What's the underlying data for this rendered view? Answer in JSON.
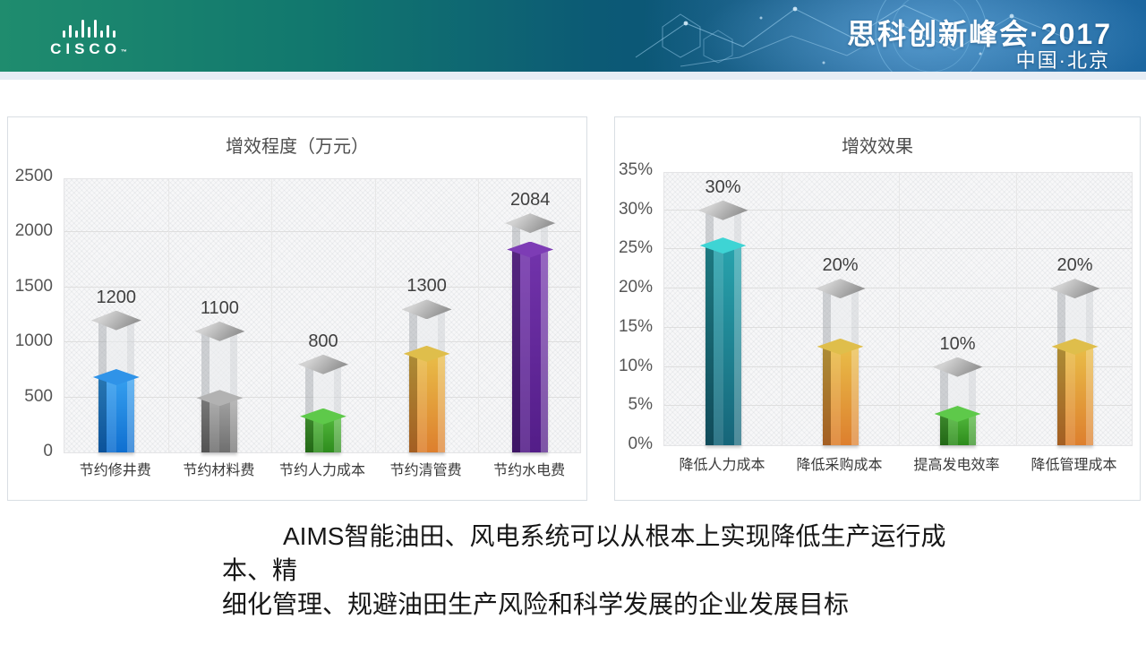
{
  "header": {
    "brand": "CISCO",
    "trademark": "™",
    "title": "思科创新峰会·2017",
    "subtitle": "中国·北京",
    "colors": {
      "gradient_teal": "#1f8c6e",
      "gradient_deep_blue": "#0b4a7c",
      "network_light_blue": "#8ecdf2"
    }
  },
  "chart_data": [
    {
      "type": "bar",
      "title": "增效程度（万元）",
      "categories": [
        "节约修井费",
        "节约材料费",
        "节约人力成本",
        "节约清管费",
        "节约水电费"
      ],
      "values": [
        1200,
        1100,
        800,
        1300,
        2084
      ],
      "data_labels": [
        "1200",
        "1100",
        "800",
        "1300",
        "2084"
      ],
      "xlabel": "",
      "ylabel": "",
      "ylim": [
        0,
        2500
      ],
      "ytick_step": 500,
      "ytick_labels": [
        "0",
        "500",
        "1000",
        "1500",
        "2000",
        "2500"
      ],
      "grid": true,
      "legend_position": "none",
      "bar_styles": [
        {
          "name": "blue",
          "grad_top": "#36a0f0",
          "grad_bottom": "#0f6fd0",
          "face": "#2f93e8",
          "fill_fraction": 0.57
        },
        {
          "name": "gray",
          "grad_top": "#a3a3a3",
          "grad_bottom": "#6f6f6f",
          "face": "#b2b2b2",
          "fill_fraction": 0.45
        },
        {
          "name": "green",
          "grad_top": "#52b83c",
          "grad_bottom": "#2e8c1d",
          "face": "#5ec94a",
          "fill_fraction": 0.41
        },
        {
          "name": "orange",
          "grad_top": "#e9bd48",
          "grad_bottom": "#dd7f2e",
          "face": "#dfbe4b",
          "fill_fraction": 0.69
        },
        {
          "name": "purple",
          "grad_top": "#7233ab",
          "grad_bottom": "#531d88",
          "face": "#7d3cb5",
          "fill_fraction": 0.885
        }
      ]
    },
    {
      "type": "bar",
      "title": "增效效果",
      "categories": [
        "降低人力成本",
        "降低采购成本",
        "提高发电效率",
        "降低管理成本"
      ],
      "values": [
        30,
        20,
        10,
        20
      ],
      "data_labels": [
        "30%",
        "20%",
        "10%",
        "20%"
      ],
      "xlabel": "",
      "ylabel": "",
      "ylim": [
        0,
        35
      ],
      "ytick_step": 5,
      "ytick_labels": [
        "0%",
        "5%",
        "10%",
        "15%",
        "20%",
        "25%",
        "30%",
        "35%"
      ],
      "grid": true,
      "legend_position": "none",
      "bar_styles": [
        {
          "name": "teal",
          "grad_top": "#28a3ad",
          "grad_bottom": "#166579",
          "face": "#3ed4d4",
          "fill_fraction": 0.85
        },
        {
          "name": "orange",
          "grad_top": "#e9bd48",
          "grad_bottom": "#dd7f2e",
          "face": "#dfbe4b",
          "fill_fraction": 0.63
        },
        {
          "name": "green",
          "grad_top": "#52b83c",
          "grad_bottom": "#2e8c1d",
          "face": "#5ec94a",
          "fill_fraction": 0.4
        },
        {
          "name": "orange",
          "grad_top": "#e9bd48",
          "grad_bottom": "#dd7f2e",
          "face": "#dfbe4b",
          "fill_fraction": 0.63
        }
      ]
    }
  ],
  "footer": {
    "line1": "AIMS智能油田、风电系统可以从根本上实现降低生产运行成本、精",
    "line2": "细化管理、规避油田生产风险和科学发展的企业发展目标"
  }
}
